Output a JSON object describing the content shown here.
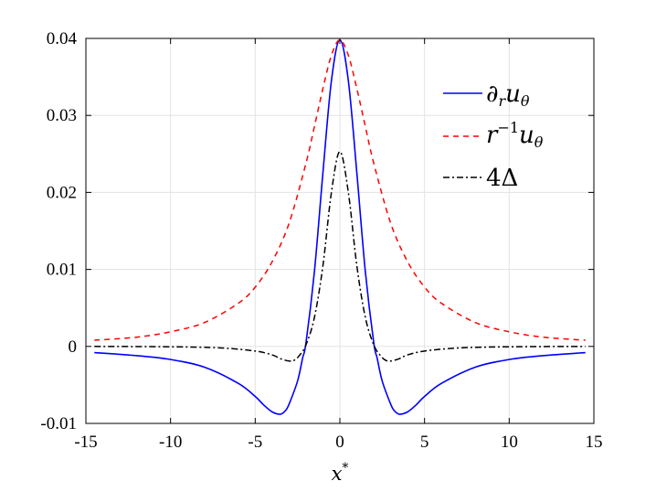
{
  "chart_data": {
    "type": "line",
    "xlabel": "x*",
    "ylabel": "",
    "xlim": [
      -15,
      15
    ],
    "ylim": [
      -0.01,
      0.04
    ],
    "grid": true,
    "legend_position": "top-right",
    "x_ticks": [
      -15,
      -10,
      -5,
      0,
      5,
      10,
      15
    ],
    "x_tick_labels": [
      "-15",
      "-10",
      "-5",
      "0",
      "5",
      "10",
      "15"
    ],
    "y_ticks": [
      -0.01,
      0,
      0.01,
      0.02,
      0.03,
      0.04
    ],
    "y_tick_labels": [
      "-0.01",
      "0",
      "0.01",
      "0.02",
      "0.03",
      "0.04"
    ],
    "series": [
      {
        "name": "∂_r u_θ",
        "color": "#0000ff",
        "dash": "solid",
        "x": [
          -14.5,
          -12,
          -10,
          -8,
          -6,
          -5,
          -4.5,
          -4,
          -3.5,
          -3.2,
          -3,
          -2.5,
          -2.2,
          -2,
          -1.5,
          -1,
          -0.5,
          0,
          0.5,
          1,
          1.5,
          2,
          2.2,
          2.5,
          3,
          3.2,
          3.5,
          4,
          4.5,
          5,
          6,
          8,
          10,
          12,
          14.5
        ],
        "y": [
          -0.0008,
          -0.0012,
          -0.0017,
          -0.0027,
          -0.0048,
          -0.0065,
          -0.0076,
          -0.0085,
          -0.0088,
          -0.0083,
          -0.0075,
          -0.0045,
          -0.0015,
          0.0005,
          0.0098,
          0.0226,
          0.0345,
          0.0398,
          0.0345,
          0.0226,
          0.0098,
          0.0005,
          -0.0015,
          -0.0045,
          -0.0075,
          -0.0083,
          -0.0088,
          -0.0085,
          -0.0076,
          -0.0065,
          -0.0048,
          -0.0027,
          -0.0017,
          -0.0012,
          -0.0008
        ]
      },
      {
        "name": "r^{-1} u_θ",
        "color": "#ff0000",
        "dash": "dashed",
        "x": [
          -14.5,
          -12,
          -10,
          -8,
          -6,
          -5,
          -4,
          -3,
          -2,
          -1.5,
          -1,
          -0.5,
          0,
          0.5,
          1,
          1.5,
          2,
          3,
          4,
          5,
          6,
          8,
          10,
          12,
          14.5
        ],
        "y": [
          0.0008,
          0.0012,
          0.0019,
          0.0031,
          0.0056,
          0.0077,
          0.011,
          0.016,
          0.0238,
          0.0286,
          0.0335,
          0.0378,
          0.0398,
          0.0378,
          0.0335,
          0.0286,
          0.0238,
          0.016,
          0.011,
          0.0077,
          0.0056,
          0.0031,
          0.0019,
          0.0012,
          0.0008
        ]
      },
      {
        "name": "4Δ",
        "color": "#000000",
        "dash": "dash-dot",
        "x": [
          -14.5,
          -10,
          -7,
          -5,
          -4,
          -3.5,
          -3,
          -2.7,
          -2.4,
          -2,
          -1.5,
          -1,
          -0.5,
          0,
          0.5,
          1,
          1.5,
          2,
          2.4,
          2.7,
          3,
          3.5,
          4,
          5,
          7,
          10,
          14.5
        ],
        "y": [
          0,
          -5e-05,
          -0.0002,
          -0.0006,
          -0.0011,
          -0.0016,
          -0.0019,
          -0.0018,
          -0.0012,
          0.0002,
          0.0038,
          0.0105,
          0.02,
          0.0253,
          0.02,
          0.0105,
          0.0038,
          0.0002,
          -0.0012,
          -0.0018,
          -0.0019,
          -0.0016,
          -0.0011,
          -0.0006,
          -0.0002,
          -5e-05,
          0
        ]
      }
    ]
  }
}
